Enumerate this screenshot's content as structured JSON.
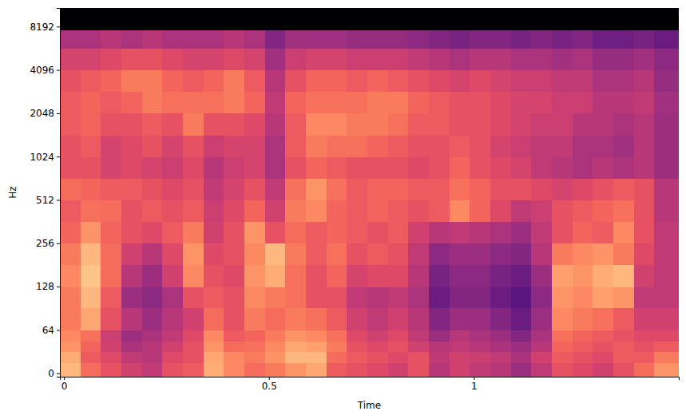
{
  "chart_data": {
    "type": "heatmap",
    "x_label": "Time",
    "y_label": "Hz",
    "log": "y",
    "xlim": [
      -0.01,
      1.5
    ],
    "ylim": [
      -5,
      11025
    ],
    "xticks": [
      0,
      0.5,
      1
    ],
    "yticks": [
      0,
      64,
      128,
      256,
      512,
      1024,
      2048,
      4096,
      8192
    ],
    "x_bins": [
      -0.01,
      0.04,
      0.09,
      0.14,
      0.19,
      0.24,
      0.29,
      0.34,
      0.39,
      0.44,
      0.49,
      0.54,
      0.59,
      0.64,
      0.69,
      0.74,
      0.79,
      0.84,
      0.89,
      0.94,
      0.99,
      1.04,
      1.09,
      1.14,
      1.19,
      1.24,
      1.29,
      1.34,
      1.39,
      1.44,
      1.5
    ],
    "y_bins": [
      -5,
      16,
      32,
      48,
      64,
      91,
      128,
      181,
      256,
      362,
      512,
      724,
      1024,
      1448,
      2048,
      2896,
      4096,
      5793,
      7800,
      11025
    ],
    "zlim": [
      -80,
      0
    ],
    "z": [
      [
        -12,
        -25,
        -30,
        -35,
        -38,
        -30,
        -28,
        -14,
        -20,
        -25,
        -22,
        -18,
        -15,
        -28,
        -30,
        -32,
        -35,
        -30,
        -40,
        -35,
        -38,
        -40,
        -45,
        -38,
        -30,
        -32,
        -35,
        -30,
        -25,
        -18
      ],
      [
        -14,
        -28,
        -32,
        -38,
        -40,
        -32,
        -30,
        -15,
        -20,
        -22,
        -18,
        -12,
        -12,
        -25,
        -28,
        -30,
        -32,
        -30,
        -38,
        -35,
        -36,
        -38,
        -42,
        -35,
        -28,
        -30,
        -32,
        -28,
        -28,
        -22
      ],
      [
        -18,
        -26,
        -35,
        -42,
        -40,
        -35,
        -30,
        -18,
        -25,
        -24,
        -20,
        -15,
        -16,
        -22,
        -30,
        -32,
        -30,
        -35,
        -40,
        -38,
        -40,
        -42,
        -45,
        -40,
        -26,
        -28,
        -30,
        -28,
        -30,
        -28
      ],
      [
        -20,
        -24,
        -36,
        -45,
        -42,
        -38,
        -32,
        -20,
        -28,
        -26,
        -22,
        -18,
        -20,
        -24,
        -32,
        -35,
        -32,
        -38,
        -45,
        -40,
        -42,
        -45,
        -50,
        -42,
        -24,
        -26,
        -28,
        -30,
        -32,
        -32
      ],
      [
        -22,
        -15,
        -30,
        -40,
        -45,
        -40,
        -35,
        -25,
        -30,
        -22,
        -25,
        -22,
        -24,
        -28,
        -35,
        -38,
        -35,
        -40,
        -50,
        -45,
        -45,
        -50,
        -55,
        -45,
        -20,
        -22,
        -24,
        -28,
        -35,
        -35
      ],
      [
        -22,
        -12,
        -28,
        -45,
        -48,
        -42,
        -30,
        -28,
        -30,
        -20,
        -22,
        -24,
        -30,
        -30,
        -38,
        -40,
        -38,
        -42,
        -55,
        -50,
        -50,
        -55,
        -58,
        -48,
        -18,
        -20,
        -16,
        -18,
        -38,
        -38
      ],
      [
        -20,
        -10,
        -25,
        -40,
        -45,
        -35,
        -20,
        -30,
        -32,
        -18,
        -14,
        -24,
        -30,
        -26,
        -34,
        -32,
        -32,
        -40,
        -52,
        -48,
        -48,
        -52,
        -55,
        -45,
        -16,
        -18,
        -14,
        -12,
        -35,
        -38
      ],
      [
        -22,
        -12,
        -25,
        -35,
        -40,
        -32,
        -18,
        -32,
        -30,
        -20,
        -12,
        -22,
        -28,
        -24,
        -30,
        -28,
        -30,
        -38,
        -48,
        -45,
        -45,
        -48,
        -50,
        -40,
        -22,
        -20,
        -18,
        -22,
        -32,
        -38
      ],
      [
        -26,
        -18,
        -26,
        -30,
        -32,
        -28,
        -22,
        -35,
        -30,
        -18,
        -30,
        -25,
        -28,
        -26,
        -28,
        -30,
        -28,
        -35,
        -40,
        -38,
        -40,
        -42,
        -45,
        -38,
        -30,
        -26,
        -28,
        -20,
        -30,
        -38
      ],
      [
        -28,
        -24,
        -25,
        -30,
        -28,
        -30,
        -28,
        -36,
        -32,
        -26,
        -35,
        -22,
        -20,
        -26,
        -28,
        -26,
        -28,
        -30,
        -28,
        -20,
        -26,
        -32,
        -38,
        -36,
        -30,
        -28,
        -26,
        -24,
        -30,
        -40
      ],
      [
        -25,
        -26,
        -28,
        -28,
        -30,
        -32,
        -30,
        -38,
        -34,
        -30,
        -38,
        -24,
        -18,
        -24,
        -28,
        -26,
        -26,
        -28,
        -28,
        -24,
        -26,
        -30,
        -30,
        -32,
        -34,
        -32,
        -30,
        -28,
        -30,
        -40
      ],
      [
        -30,
        -30,
        -34,
        -32,
        -34,
        -36,
        -32,
        -40,
        -36,
        -34,
        -42,
        -30,
        -26,
        -28,
        -30,
        -30,
        -30,
        -32,
        -30,
        -26,
        -30,
        -32,
        -34,
        -38,
        -40,
        -42,
        -40,
        -42,
        -40,
        -45
      ],
      [
        -30,
        -28,
        -34,
        -32,
        -30,
        -34,
        -30,
        -36,
        -34,
        -34,
        -42,
        -28,
        -22,
        -24,
        -24,
        -26,
        -28,
        -30,
        -30,
        -28,
        -30,
        -34,
        -36,
        -38,
        -38,
        -42,
        -42,
        -44,
        -40,
        -45
      ],
      [
        -28,
        -26,
        -30,
        -30,
        -28,
        -30,
        -22,
        -30,
        -30,
        -32,
        -40,
        -28,
        -20,
        -20,
        -22,
        -22,
        -24,
        -28,
        -28,
        -30,
        -30,
        -32,
        -34,
        -36,
        -36,
        -40,
        -40,
        -42,
        -40,
        -45
      ],
      [
        -28,
        -26,
        -28,
        -26,
        -22,
        -24,
        -24,
        -24,
        -22,
        -26,
        -38,
        -26,
        -24,
        -24,
        -24,
        -22,
        -22,
        -26,
        -28,
        -30,
        -30,
        -32,
        -34,
        -34,
        -36,
        -36,
        -40,
        -40,
        -38,
        -44
      ],
      [
        -30,
        -28,
        -26,
        -22,
        -22,
        -26,
        -28,
        -26,
        -22,
        -28,
        -40,
        -30,
        -26,
        -26,
        -28,
        -26,
        -28,
        -30,
        -32,
        -34,
        -32,
        -34,
        -36,
        -36,
        -38,
        -38,
        -42,
        -42,
        -40,
        -46
      ],
      [
        -34,
        -34,
        -32,
        -30,
        -30,
        -32,
        -34,
        -34,
        -32,
        -34,
        -44,
        -36,
        -34,
        -34,
        -36,
        -36,
        -36,
        -38,
        -40,
        -42,
        -40,
        -40,
        -42,
        -42,
        -44,
        -42,
        -46,
        -46,
        -44,
        -48
      ],
      [
        -42,
        -42,
        -40,
        -42,
        -40,
        -42,
        -42,
        -42,
        -40,
        -42,
        -50,
        -44,
        -44,
        -44,
        -46,
        -46,
        -46,
        -48,
        -50,
        -52,
        -50,
        -50,
        -52,
        -50,
        -52,
        -50,
        -54,
        -54,
        -52,
        -55
      ],
      [
        -80,
        -80,
        -80,
        -80,
        -80,
        -80,
        -80,
        -80,
        -80,
        -80,
        -80,
        -80,
        -80,
        -80,
        -80,
        -80,
        -80,
        -80,
        -80,
        -80,
        -80,
        -80,
        -80,
        -80,
        -80,
        -80,
        -80,
        -80,
        -80,
        -80
      ]
    ]
  }
}
